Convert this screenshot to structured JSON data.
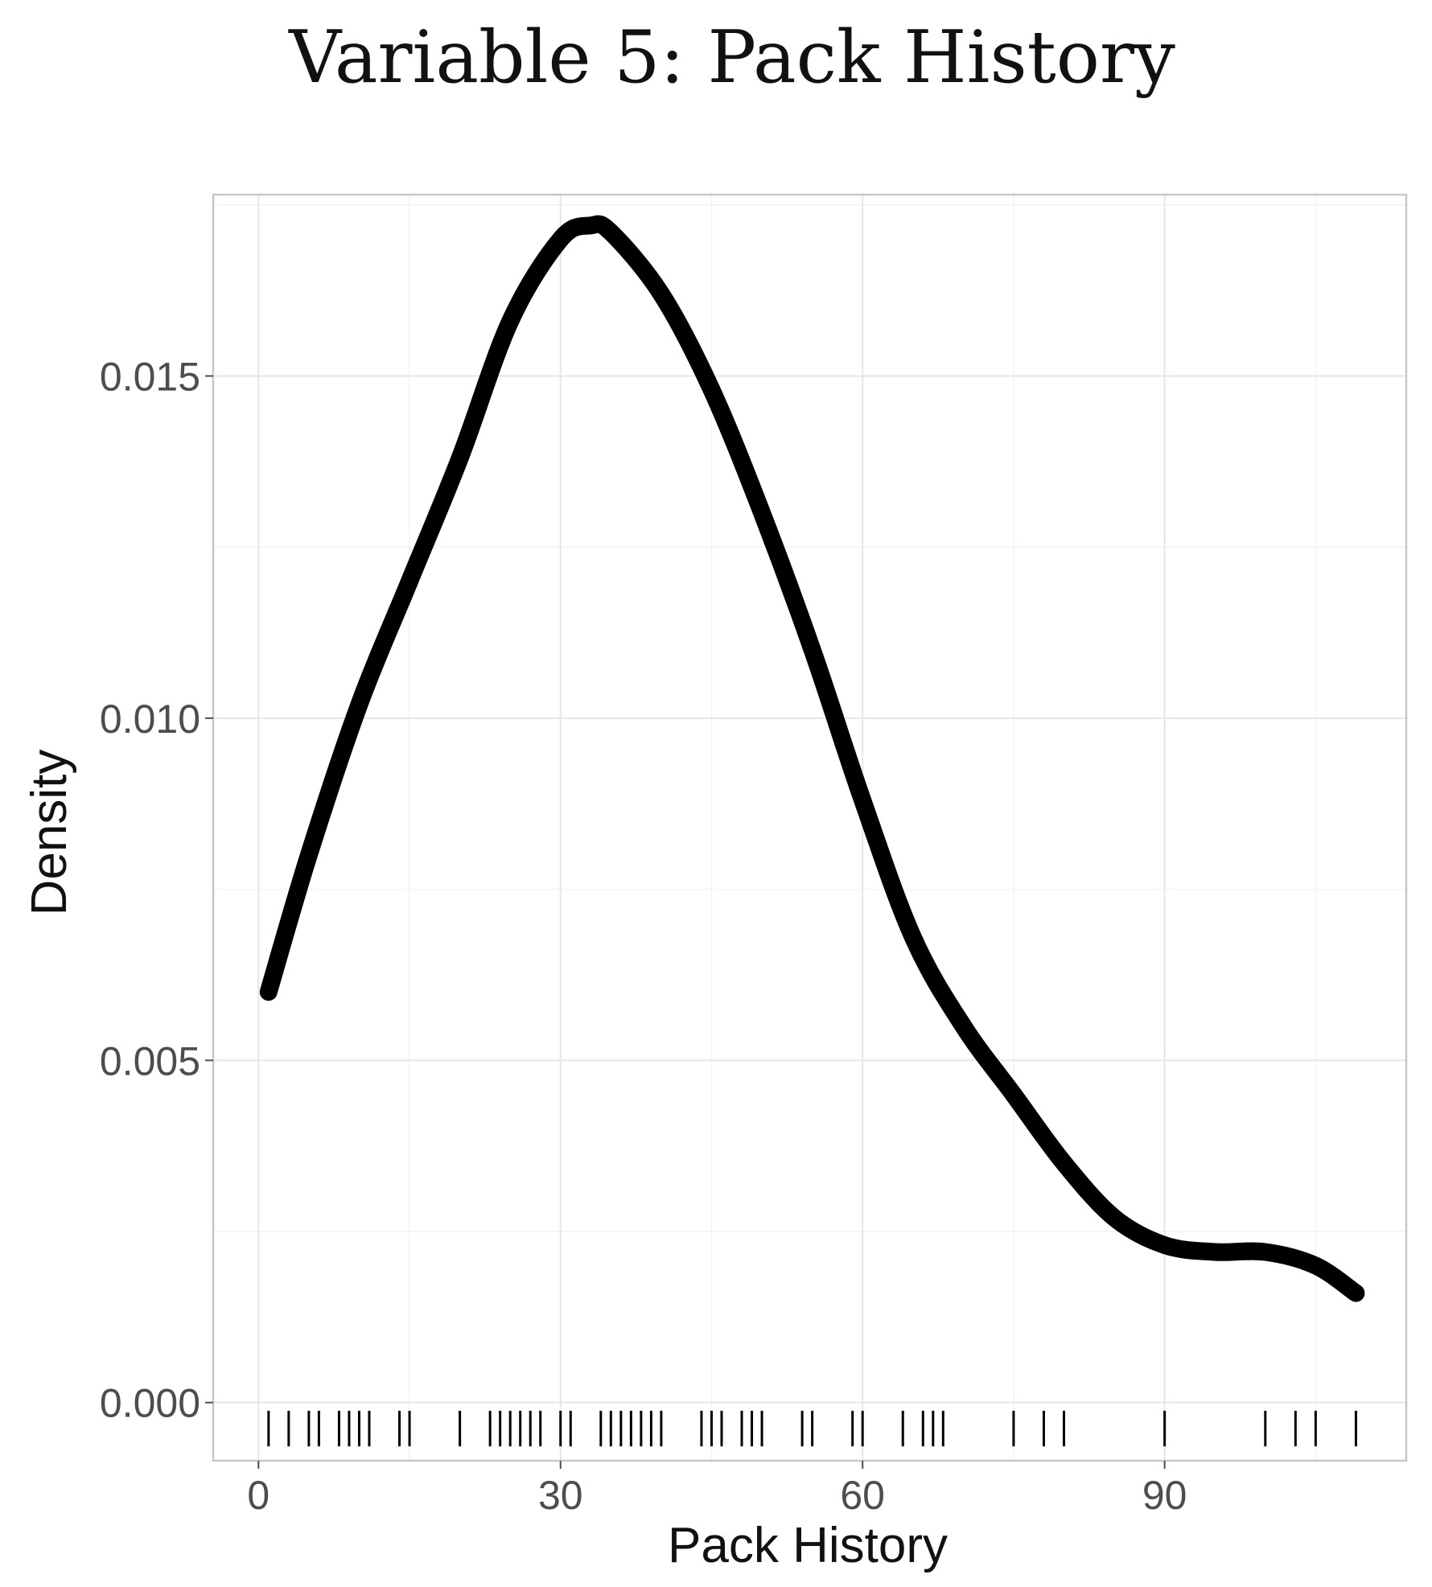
{
  "chart_data": {
    "type": "line",
    "title": "Variable 5: Pack History",
    "xlabel": "Pack History",
    "ylabel": "Density",
    "xlim": [
      -4.5,
      114
    ],
    "ylim": [
      -0.00085,
      0.01765
    ],
    "x_ticks": [
      0,
      30,
      60,
      90
    ],
    "x_tick_labels": [
      "0",
      "30",
      "60",
      "90"
    ],
    "y_ticks": [
      0.0,
      0.005,
      0.01,
      0.015
    ],
    "y_tick_labels": [
      "0.000",
      "0.005",
      "0.010",
      "0.015"
    ],
    "grid": true,
    "legend": "none",
    "series": [
      {
        "x": [
          1,
          5,
          10,
          15,
          20,
          25,
          30,
          33,
          35,
          40,
          45,
          50,
          55,
          60,
          65,
          70,
          75,
          80,
          85,
          90,
          95,
          100,
          105,
          109
        ],
        "y": [
          0.006,
          0.008,
          0.0102,
          0.012,
          0.0138,
          0.0158,
          0.017,
          0.0172,
          0.0171,
          0.0162,
          0.0148,
          0.013,
          0.011,
          0.0088,
          0.0068,
          0.0055,
          0.0045,
          0.0035,
          0.0027,
          0.0023,
          0.0022,
          0.0022,
          0.002,
          0.0016
        ]
      }
    ],
    "rug": [
      1,
      3,
      5,
      6,
      8,
      9,
      10,
      11,
      14,
      15,
      20,
      23,
      24,
      25,
      26,
      27,
      28,
      30,
      31,
      34,
      35,
      36,
      37,
      38,
      39,
      40,
      44,
      45,
      46,
      48,
      49,
      50,
      54,
      55,
      59,
      60,
      64,
      66,
      67,
      68,
      75,
      78,
      80,
      90,
      100,
      103,
      105,
      109
    ],
    "colors": {
      "line": "#000000",
      "rug": "#000000",
      "grid": "#e6e6e6",
      "panel_border": "#c8c8c8",
      "tick_text": "#4d4d4d"
    }
  }
}
